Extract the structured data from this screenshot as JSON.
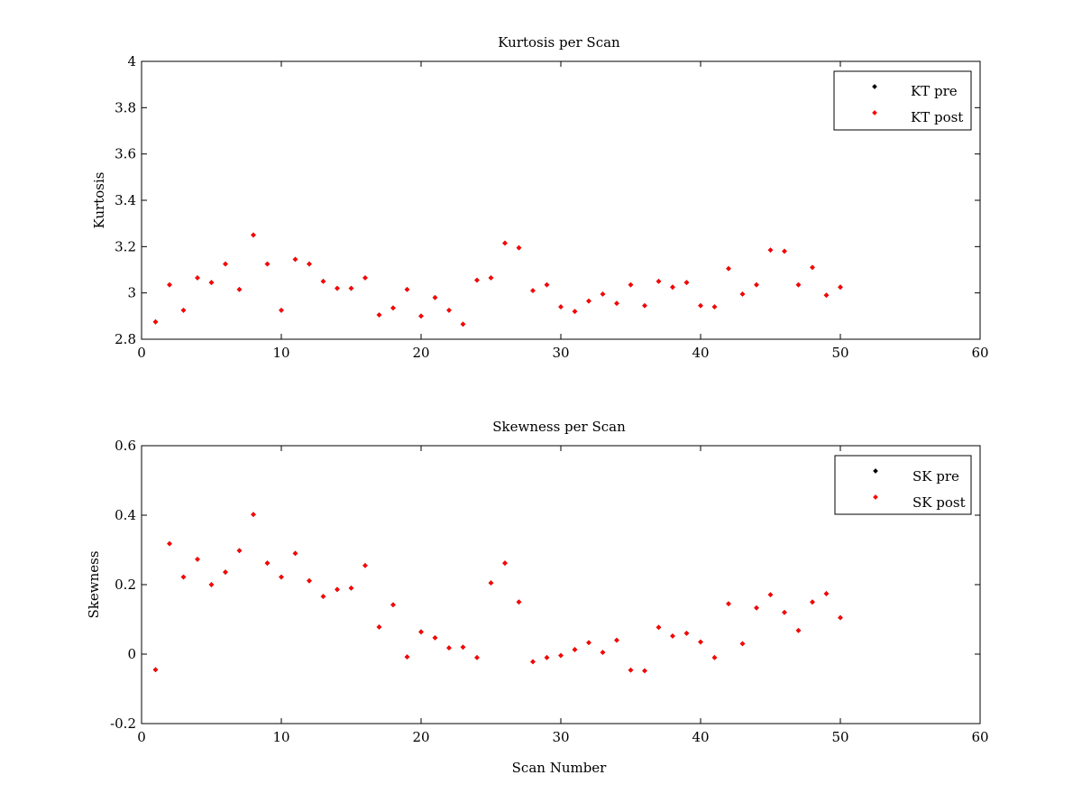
{
  "chart_data": [
    {
      "type": "scatter",
      "title": "Kurtosis per Scan",
      "xlabel": "",
      "ylabel": "Kurtosis",
      "xlim": [
        0,
        60
      ],
      "ylim": [
        2.8,
        4
      ],
      "xticks": [
        "0",
        "10",
        "20",
        "30",
        "40",
        "50",
        "60"
      ],
      "yticks": [
        "2.8",
        "3",
        "3.2",
        "3.4",
        "3.6",
        "3.8",
        "4"
      ],
      "grid": false,
      "legend_position": "top-right",
      "series": [
        {
          "name": "KT pre",
          "color": "#000000",
          "x": [
            1,
            2,
            3,
            4,
            5,
            6,
            7,
            8,
            9,
            10,
            11,
            12,
            13,
            14,
            15,
            16,
            17,
            18,
            19,
            20,
            21,
            22,
            23,
            24,
            25,
            26,
            27,
            28,
            29,
            30,
            31,
            32,
            33,
            34,
            35,
            36,
            37,
            38,
            39,
            40,
            41,
            42,
            43,
            44,
            45,
            46,
            47,
            48,
            49,
            50
          ],
          "y": [
            2.875,
            3.035,
            2.925,
            3.065,
            3.045,
            3.125,
            3.015,
            3.25,
            3.125,
            2.925,
            3.145,
            3.125,
            3.05,
            3.02,
            3.02,
            3.065,
            2.905,
            2.935,
            3.015,
            2.9,
            2.98,
            2.925,
            2.865,
            3.055,
            3.065,
            3.215,
            3.195,
            3.01,
            3.035,
            2.94,
            2.92,
            2.965,
            2.995,
            2.955,
            3.035,
            2.945,
            3.05,
            3.025,
            3.045,
            2.945,
            2.94,
            3.105,
            2.995,
            3.035,
            3.185,
            3.18,
            3.035,
            3.11,
            2.99,
            3.025
          ]
        },
        {
          "name": "KT post",
          "color": "#ff0000",
          "x": [
            1,
            2,
            3,
            4,
            5,
            6,
            7,
            8,
            9,
            10,
            11,
            12,
            13,
            14,
            15,
            16,
            17,
            18,
            19,
            20,
            21,
            22,
            23,
            24,
            25,
            26,
            27,
            28,
            29,
            30,
            31,
            32,
            33,
            34,
            35,
            36,
            37,
            38,
            39,
            40,
            41,
            42,
            43,
            44,
            45,
            46,
            47,
            48,
            49,
            50
          ],
          "y": [
            2.875,
            3.035,
            2.925,
            3.065,
            3.045,
            3.125,
            3.015,
            3.25,
            3.125,
            2.925,
            3.145,
            3.125,
            3.05,
            3.02,
            3.02,
            3.065,
            2.905,
            2.935,
            3.015,
            2.9,
            2.98,
            2.925,
            2.865,
            3.055,
            3.065,
            3.215,
            3.195,
            3.01,
            3.035,
            2.94,
            2.92,
            2.965,
            2.995,
            2.955,
            3.035,
            2.945,
            3.05,
            3.025,
            3.045,
            2.945,
            2.94,
            3.105,
            2.995,
            3.035,
            3.185,
            3.18,
            3.035,
            3.11,
            2.99,
            3.025
          ]
        }
      ]
    },
    {
      "type": "scatter",
      "title": "Skewness per Scan",
      "xlabel": "Scan Number",
      "ylabel": "Skewness",
      "xlim": [
        0,
        60
      ],
      "ylim": [
        -0.2,
        0.6
      ],
      "xticks": [
        "0",
        "10",
        "20",
        "30",
        "40",
        "50",
        "60"
      ],
      "yticks": [
        "-0.2",
        "0",
        "0.2",
        "0.4",
        "0.6"
      ],
      "grid": false,
      "legend_position": "top-right",
      "series": [
        {
          "name": "SK pre",
          "color": "#000000",
          "x": [
            1,
            2,
            3,
            4,
            5,
            6,
            7,
            8,
            9,
            10,
            11,
            12,
            13,
            14,
            15,
            16,
            17,
            18,
            19,
            20,
            21,
            22,
            23,
            24,
            25,
            26,
            27,
            28,
            29,
            30,
            31,
            32,
            33,
            34,
            35,
            36,
            37,
            38,
            39,
            40,
            41,
            42,
            43,
            44,
            45,
            46,
            47,
            48,
            49,
            50
          ],
          "y": [
            -0.045,
            0.318,
            0.222,
            0.273,
            0.2,
            0.236,
            0.298,
            0.402,
            0.262,
            0.222,
            0.29,
            0.211,
            0.166,
            0.186,
            0.19,
            0.255,
            0.078,
            0.142,
            -0.008,
            0.064,
            0.047,
            0.018,
            0.02,
            -0.01,
            0.205,
            0.262,
            0.15,
            -0.022,
            -0.01,
            -0.004,
            0.013,
            0.033,
            0.005,
            0.04,
            -0.046,
            -0.048,
            0.077,
            0.052,
            0.06,
            0.035,
            -0.01,
            0.145,
            0.03,
            0.133,
            0.171,
            0.12,
            0.068,
            0.15,
            0.174,
            0.105
          ]
        },
        {
          "name": "SK post",
          "color": "#ff0000",
          "x": [
            1,
            2,
            3,
            4,
            5,
            6,
            7,
            8,
            9,
            10,
            11,
            12,
            13,
            14,
            15,
            16,
            17,
            18,
            19,
            20,
            21,
            22,
            23,
            24,
            25,
            26,
            27,
            28,
            29,
            30,
            31,
            32,
            33,
            34,
            35,
            36,
            37,
            38,
            39,
            40,
            41,
            42,
            43,
            44,
            45,
            46,
            47,
            48,
            49,
            50
          ],
          "y": [
            -0.045,
            0.318,
            0.222,
            0.273,
            0.2,
            0.236,
            0.298,
            0.402,
            0.262,
            0.222,
            0.29,
            0.211,
            0.166,
            0.186,
            0.19,
            0.255,
            0.078,
            0.142,
            -0.008,
            0.064,
            0.047,
            0.018,
            0.02,
            -0.01,
            0.205,
            0.262,
            0.15,
            -0.022,
            -0.01,
            -0.004,
            0.013,
            0.033,
            0.005,
            0.04,
            -0.046,
            -0.048,
            0.077,
            0.052,
            0.06,
            0.035,
            -0.01,
            0.145,
            0.03,
            0.133,
            0.171,
            0.12,
            0.068,
            0.15,
            0.174,
            0.105
          ]
        }
      ]
    }
  ]
}
